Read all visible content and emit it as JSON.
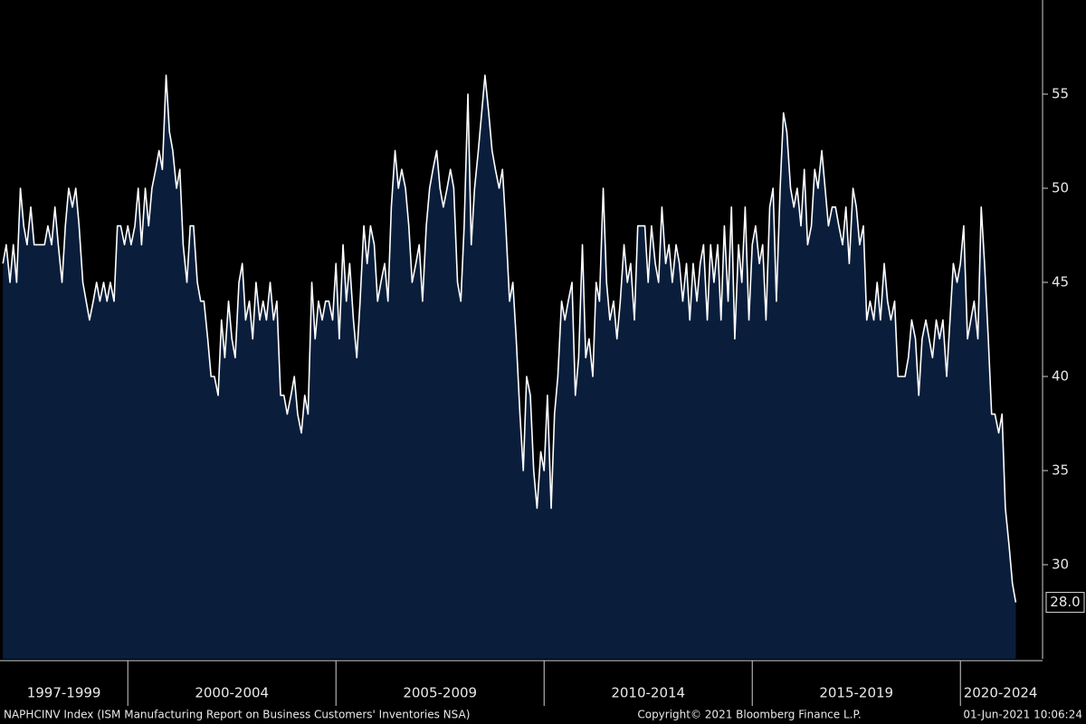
{
  "chart_data": {
    "type": "area",
    "series": [
      {
        "name": "NAPHCINV Index (ISM Manufacturing Report on Business Customers' Inventories NSA)",
        "color": "#ffffff",
        "fill": "#0a1e3c",
        "x": [
          1997,
          1997.08,
          1997.17,
          1997.25,
          1997.33,
          1997.42,
          1997.5,
          1997.58,
          1997.67,
          1997.75,
          1997.83,
          1997.92,
          1998,
          1998.08,
          1998.17,
          1998.25,
          1998.33,
          1998.42,
          1998.5,
          1998.58,
          1998.67,
          1998.75,
          1998.83,
          1998.92,
          1999,
          1999.08,
          1999.17,
          1999.25,
          1999.33,
          1999.42,
          1999.5,
          1999.58,
          1999.67,
          1999.75,
          1999.83,
          1999.92,
          2000,
          2000.08,
          2000.17,
          2000.25,
          2000.33,
          2000.42,
          2000.5,
          2000.58,
          2000.67,
          2000.75,
          2000.83,
          2000.92,
          2001,
          2001.08,
          2001.17,
          2001.25,
          2001.33,
          2001.42,
          2001.5,
          2001.58,
          2001.67,
          2001.75,
          2001.83,
          2001.92,
          2002,
          2002.08,
          2002.17,
          2002.25,
          2002.33,
          2002.42,
          2002.5,
          2002.58,
          2002.67,
          2002.75,
          2002.83,
          2002.92,
          2003,
          2003.08,
          2003.17,
          2003.25,
          2003.33,
          2003.42,
          2003.5,
          2003.58,
          2003.67,
          2003.75,
          2003.83,
          2003.92,
          2004,
          2004.08,
          2004.17,
          2004.25,
          2004.33,
          2004.42,
          2004.5,
          2004.58,
          2004.67,
          2004.75,
          2004.83,
          2004.92,
          2005,
          2005.08,
          2005.17,
          2005.25,
          2005.33,
          2005.42,
          2005.5,
          2005.58,
          2005.67,
          2005.75,
          2005.83,
          2005.92,
          2006,
          2006.08,
          2006.17,
          2006.25,
          2006.33,
          2006.42,
          2006.5,
          2006.58,
          2006.67,
          2006.75,
          2006.83,
          2006.92,
          2007,
          2007.08,
          2007.17,
          2007.25,
          2007.33,
          2007.42,
          2007.5,
          2007.58,
          2007.67,
          2007.75,
          2007.83,
          2007.92,
          2008,
          2008.08,
          2008.17,
          2008.25,
          2008.33,
          2008.42,
          2008.5,
          2008.58,
          2008.67,
          2008.75,
          2008.83,
          2008.92,
          2009,
          2009.08,
          2009.17,
          2009.25,
          2009.33,
          2009.42,
          2009.5,
          2009.58,
          2009.67,
          2009.75,
          2009.83,
          2009.92,
          2010,
          2010.08,
          2010.17,
          2010.25,
          2010.33,
          2010.42,
          2010.5,
          2010.58,
          2010.67,
          2010.75,
          2010.83,
          2010.92,
          2011,
          2011.08,
          2011.17,
          2011.25,
          2011.33,
          2011.42,
          2011.5,
          2011.58,
          2011.67,
          2011.75,
          2011.83,
          2011.92,
          2012,
          2012.08,
          2012.17,
          2012.25,
          2012.33,
          2012.42,
          2012.5,
          2012.58,
          2012.67,
          2012.75,
          2012.83,
          2012.92,
          2013,
          2013.08,
          2013.17,
          2013.25,
          2013.33,
          2013.42,
          2013.5,
          2013.58,
          2013.67,
          2013.75,
          2013.83,
          2013.92,
          2014,
          2014.08,
          2014.17,
          2014.25,
          2014.33,
          2014.42,
          2014.5,
          2014.58,
          2014.67,
          2014.75,
          2014.83,
          2014.92,
          2015,
          2015.08,
          2015.17,
          2015.25,
          2015.33,
          2015.42,
          2015.5,
          2015.58,
          2015.67,
          2015.75,
          2015.83,
          2015.92,
          2016,
          2016.08,
          2016.17,
          2016.25,
          2016.33,
          2016.42,
          2016.5,
          2016.58,
          2016.67,
          2016.75,
          2016.83,
          2016.92,
          2017,
          2017.08,
          2017.17,
          2017.25,
          2017.33,
          2017.42,
          2017.5,
          2017.58,
          2017.67,
          2017.75,
          2017.83,
          2017.92,
          2018,
          2018.08,
          2018.17,
          2018.25,
          2018.33,
          2018.42,
          2018.5,
          2018.58,
          2018.67,
          2018.75,
          2018.83,
          2018.92,
          2019,
          2019.08,
          2019.17,
          2019.25,
          2019.33,
          2019.42,
          2019.5,
          2019.58,
          2019.67,
          2019.75,
          2019.83,
          2019.92,
          2020,
          2020.08,
          2020.17,
          2020.25,
          2020.33,
          2020.42,
          2020.5,
          2020.58,
          2020.67,
          2020.75,
          2020.83,
          2020.92,
          2021,
          2021.08,
          2021.17,
          2021.25,
          2021.33
        ],
        "values": [
          46,
          47,
          45,
          47,
          45,
          50,
          48,
          47,
          49,
          47,
          47,
          47,
          47,
          48,
          47,
          49,
          47,
          45,
          48,
          50,
          49,
          50,
          48,
          45,
          44,
          43,
          44,
          45,
          44,
          45,
          44,
          45,
          44,
          48,
          48,
          47,
          48,
          47,
          48,
          50,
          47,
          50,
          48,
          50,
          51,
          52,
          51,
          56,
          53,
          52,
          50,
          51,
          47,
          45,
          48,
          48,
          45,
          44,
          44,
          42,
          40,
          40,
          39,
          43,
          41,
          44,
          42,
          41,
          45,
          46,
          43,
          44,
          42,
          45,
          43,
          44,
          43,
          45,
          43,
          44,
          39,
          39,
          38,
          39,
          40,
          38,
          37,
          39,
          38,
          45,
          42,
          44,
          43,
          44,
          44,
          43,
          46,
          42,
          47,
          44,
          46,
          43,
          41,
          44,
          48,
          46,
          48,
          47,
          44,
          45,
          46,
          44,
          49,
          52,
          50,
          51,
          50,
          48,
          45,
          46,
          47,
          44,
          48,
          50,
          51,
          52,
          50,
          49,
          50,
          51,
          50,
          45,
          44,
          48,
          55,
          47,
          50,
          52,
          54,
          56,
          54,
          52,
          51,
          50,
          51,
          48,
          44,
          45,
          42,
          38,
          35,
          40,
          39,
          35,
          33,
          36,
          35,
          39,
          33,
          38,
          40,
          44,
          43,
          44,
          45,
          39,
          41,
          47,
          41,
          42,
          40,
          45,
          44,
          50,
          45,
          43,
          44,
          42,
          44,
          47,
          45,
          46,
          43,
          48,
          48,
          48,
          45,
          48,
          46,
          45,
          49,
          46,
          47,
          45,
          47,
          46,
          44,
          46,
          43,
          46,
          44,
          46,
          47,
          43,
          47,
          45,
          47,
          43,
          48,
          44,
          49,
          42,
          47,
          45,
          49,
          43,
          47,
          48,
          46,
          47,
          43,
          49,
          50,
          44,
          50,
          54,
          53,
          50,
          49,
          50,
          48,
          51,
          47,
          48,
          51,
          50,
          52,
          50,
          48,
          49,
          49,
          48,
          47,
          49,
          46,
          50,
          49,
          47,
          48,
          43,
          44,
          43,
          45,
          43,
          46,
          44,
          43,
          44,
          40,
          40,
          40,
          41,
          43,
          42,
          39,
          42,
          43,
          42,
          41,
          43,
          42,
          43,
          40,
          43,
          46,
          45,
          46,
          48,
          42,
          43,
          44,
          42,
          49,
          46,
          42,
          38,
          38,
          37,
          38,
          33,
          31,
          29,
          28
        ],
        "value_labels": [
          null,
          null,
          null,
          null,
          null,
          null,
          null,
          null,
          null,
          null,
          null,
          null,
          null,
          null,
          null,
          null,
          null,
          null,
          null,
          null,
          null,
          null,
          null,
          null,
          null,
          null,
          null,
          null,
          null,
          null,
          null,
          null,
          null,
          null,
          null,
          null,
          null,
          null,
          null,
          null,
          null,
          null,
          null,
          null,
          null,
          null,
          null,
          null,
          null,
          null,
          null,
          null,
          null,
          null,
          null,
          null,
          null,
          null,
          null,
          null,
          null,
          null,
          null,
          null,
          null,
          null,
          null,
          null,
          null,
          null,
          null,
          null,
          null,
          null,
          null,
          null,
          null,
          null,
          null,
          null,
          null,
          null,
          null,
          null,
          null,
          null,
          null,
          null,
          null,
          null,
          null,
          null,
          null,
          null,
          null,
          null,
          null,
          null,
          null,
          null,
          null,
          null,
          null,
          null,
          null,
          null,
          null,
          null,
          null,
          null,
          null,
          null,
          null,
          null,
          null,
          null,
          null,
          null,
          null,
          null,
          null,
          null,
          null,
          null,
          null,
          null,
          null,
          null,
          null,
          null,
          null,
          null,
          null,
          null,
          null,
          null,
          null,
          null,
          null,
          null,
          null,
          null,
          null,
          null,
          null,
          null,
          null,
          null,
          null,
          null,
          null,
          null,
          null,
          null,
          null,
          null,
          null,
          null,
          null,
          null,
          null,
          null,
          null,
          null,
          null,
          null,
          null,
          null,
          null,
          null,
          null,
          null,
          null,
          null,
          null,
          null,
          null,
          null,
          null,
          null,
          null,
          null,
          null,
          null,
          null,
          null,
          null,
          null,
          null,
          null,
          null,
          null,
          null,
          null,
          null,
          null,
          null,
          null,
          null,
          null,
          null,
          null,
          null,
          null,
          null,
          null,
          null,
          null,
          null,
          null,
          null,
          null,
          null,
          null,
          null,
          null,
          null,
          null,
          null,
          null,
          null,
          null,
          null,
          null,
          null,
          null,
          null,
          null,
          null,
          null,
          null,
          null,
          null,
          null,
          null,
          null,
          null,
          null,
          null,
          null,
          null,
          null,
          null,
          null,
          null,
          null,
          null,
          null,
          null,
          null,
          null,
          null,
          null,
          null,
          null,
          null,
          null,
          null,
          null,
          null,
          null,
          null,
          null,
          null,
          null,
          null,
          null,
          null,
          null,
          null,
          null,
          null,
          null,
          null,
          null,
          null,
          null,
          null,
          null,
          null,
          null,
          null,
          null,
          null,
          null,
          null,
          null,
          null,
          null,
          null,
          null,
          null,
          "28.0"
        ]
      }
    ],
    "categories": [
      "1997-1999",
      "2000-2004",
      "2005-2009",
      "2010-2014",
      "2015-2019",
      "2020-2024"
    ],
    "xlim": [
      1996.93,
      2021.93
    ],
    "xticks": [
      2000,
      2005,
      2010,
      2015,
      2020
    ],
    "ylim": [
      25,
      60
    ],
    "yticks": [
      30,
      35,
      40,
      45,
      50,
      55
    ],
    "copyright": "Copyright© 2021 Bloomberg Finance L.P.",
    "timestamp": "01-Jun-2021 10:06:24"
  }
}
